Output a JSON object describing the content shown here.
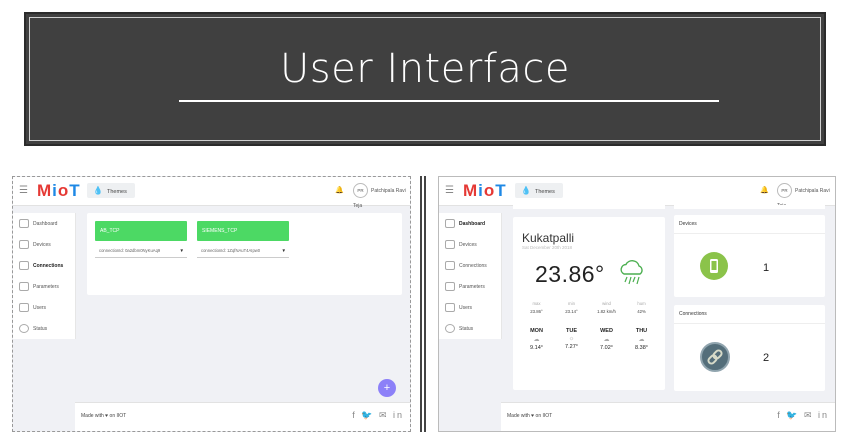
{
  "banner": {
    "title": "User Interface"
  },
  "app": {
    "logo": {
      "m": "M",
      "i": "i",
      "o": "o",
      "t": "T"
    },
    "themes_label": "Themes",
    "user_initials": "PR",
    "user_name": "Patchipala Ravi Teja",
    "sidebar": [
      {
        "label": "Dashboard"
      },
      {
        "label": "Devices"
      },
      {
        "label": "Connections"
      },
      {
        "label": "Parameters"
      },
      {
        "label": "Users"
      },
      {
        "label": "Status"
      }
    ],
    "footer": {
      "made_with": "Made with ♥ on IIOT",
      "social": "f 🐦 ✉ in"
    }
  },
  "left": {
    "connections": [
      {
        "title": "AB_TCP",
        "value": "connectionId: 0a2dbm0NyKuAq9"
      },
      {
        "title": "SIEMENS_TCP",
        "value": "connectionId: 1ZqfNAuT4AIpw0"
      }
    ],
    "fab": "+"
  },
  "right": {
    "weather": {
      "city": "Kukatpalli",
      "date": "Sat December 20th 2018",
      "temp": "23.86°",
      "stats": [
        {
          "k": "max",
          "v": "23.86°"
        },
        {
          "k": "min",
          "v": "23.14°"
        },
        {
          "k": "wind",
          "v": "1.82 km/h"
        },
        {
          "k": "hum",
          "v": "42%"
        }
      ],
      "days": [
        {
          "name": "MON",
          "icon": "☁",
          "temp": "9.14°"
        },
        {
          "name": "TUE",
          "icon": "☼",
          "temp": "7.27°"
        },
        {
          "name": "WED",
          "icon": "☁",
          "temp": "7.02°"
        },
        {
          "name": "THU",
          "icon": "☁",
          "temp": "8.38°"
        }
      ]
    },
    "devices": {
      "title": "Devices",
      "count": "1",
      "color": "#8bc34a"
    },
    "connections": {
      "title": "Connections",
      "count": "2",
      "color": "#546e7a"
    }
  }
}
